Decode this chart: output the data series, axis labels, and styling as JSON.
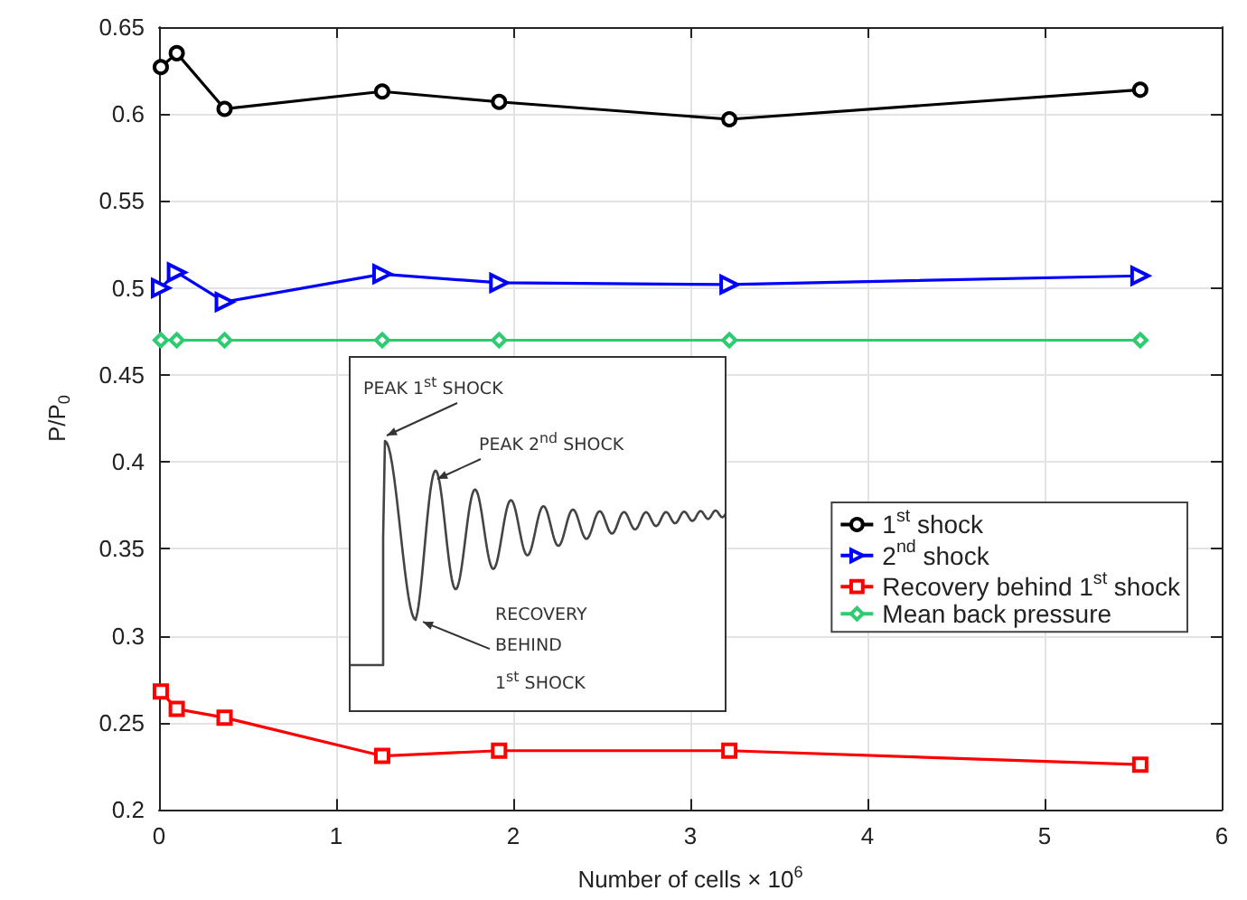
{
  "chart_data": {
    "type": "line",
    "xlabel": "Number of cells × 10$^{6}$",
    "ylabel": "P/P$_{0}$",
    "x": [
      0.01,
      0.1,
      0.37,
      1.26,
      1.92,
      3.22,
      5.54
    ],
    "series": [
      {
        "name": "1$^{st}$ shock",
        "color": "#000000",
        "marker": "circle",
        "values": [
          0.627,
          0.635,
          0.603,
          0.613,
          0.607,
          0.597,
          0.614
        ]
      },
      {
        "name": "2$^{nd}$ shock",
        "color": "#0000ff",
        "marker": "triangle",
        "values": [
          0.5,
          0.509,
          0.492,
          0.508,
          0.503,
          0.502,
          0.507
        ]
      },
      {
        "name": "Recovery behind 1$^{st}$ shock",
        "color": "#ff0000",
        "marker": "square",
        "values": [
          0.268,
          0.258,
          0.253,
          0.231,
          0.234,
          0.234,
          0.226
        ]
      },
      {
        "name": "Mean back pressure",
        "color": "#2ecc71",
        "marker": "diamond",
        "values": [
          0.47,
          0.47,
          0.47,
          0.47,
          0.47,
          0.47,
          0.47
        ]
      }
    ],
    "xlim": [
      0,
      6
    ],
    "xticks": [
      0,
      1,
      2,
      3,
      4,
      5,
      6
    ],
    "ylim": [
      0.2,
      0.65
    ],
    "yticks": [
      0.2,
      0.25,
      0.3,
      0.35,
      0.4,
      0.45,
      0.5,
      0.55,
      0.6,
      0.65
    ],
    "grid": true,
    "legend": "right",
    "line_style": "solid",
    "annotations": [
      "PEAK 1$^{st}$ SHOCK",
      "PEAK 2$^{nd}$ SHOCK",
      "RECOVERY\nBEHIND\n1$^{st}$ SHOCK"
    ]
  }
}
